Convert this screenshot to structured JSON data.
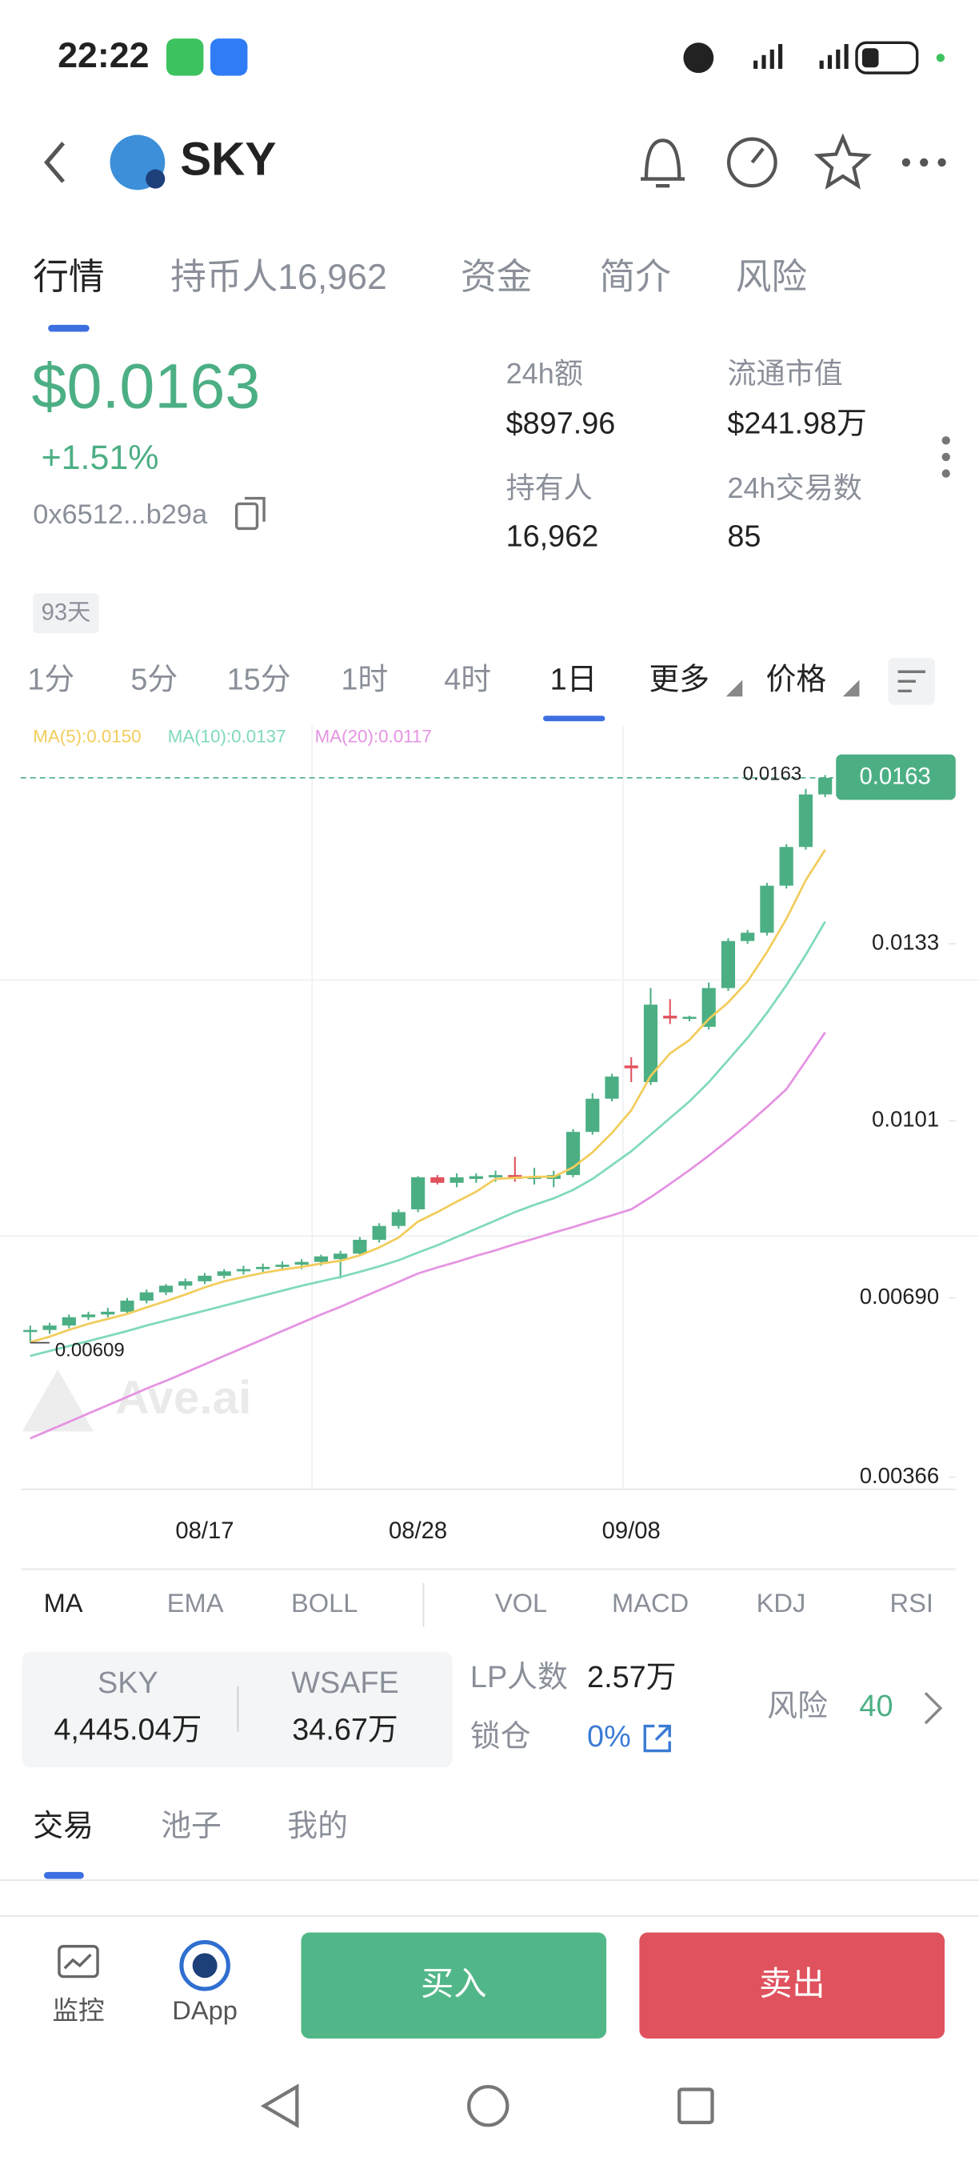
{
  "status_bar": {
    "time": "22:22"
  },
  "header": {
    "title": "SKY"
  },
  "tabs": [
    "行情",
    "持币人16,962",
    "资金",
    "简介",
    "风险"
  ],
  "price": {
    "value": "$0.0163",
    "change": "+1.51%",
    "address": "0x6512...b29a"
  },
  "stats": [
    {
      "label": "24h额",
      "value": "$897.96"
    },
    {
      "label": "流通市值",
      "value": "$241.98万"
    },
    {
      "label": "持有人",
      "value": "16,962"
    },
    {
      "label": "24h交易数",
      "value": "85"
    }
  ],
  "age": "93天",
  "intervals": [
    "1分",
    "5分",
    "15分",
    "1时",
    "4时",
    "1日",
    "更多",
    "价格"
  ],
  "chart_data": {
    "type": "candlestick",
    "categories": [
      null,
      null,
      null,
      null,
      null,
      null,
      null,
      null,
      null,
      "08/17",
      null,
      null,
      null,
      null,
      null,
      null,
      null,
      null,
      null,
      null,
      "08/28",
      null,
      null,
      null,
      null,
      null,
      null,
      null,
      null,
      null,
      null,
      "09/08",
      null,
      null,
      null,
      null,
      null,
      null,
      null,
      null,
      null,
      null
    ],
    "open": [
      0.0063,
      0.00632,
      0.0064,
      0.00655,
      0.0066,
      0.00665,
      0.00685,
      0.007,
      0.00712,
      0.0072,
      0.0073,
      0.00738,
      0.00742,
      0.00746,
      0.0075,
      0.00755,
      0.0076,
      0.0077,
      0.00795,
      0.0082,
      0.0085,
      0.00908,
      0.00898,
      0.00905,
      0.00908,
      0.00912,
      0.00905,
      0.00905,
      0.00912,
      0.0099,
      0.0105,
      0.0111,
      0.0108,
      0.012,
      0.01195,
      0.0118,
      0.0125,
      0.01335,
      0.0135,
      0.01435,
      0.01505,
      0.016
    ],
    "high": [
      0.0064,
      0.00645,
      0.0066,
      0.00665,
      0.00672,
      0.0069,
      0.00705,
      0.00715,
      0.00725,
      0.00735,
      0.00742,
      0.00748,
      0.00752,
      0.00756,
      0.0076,
      0.00768,
      0.00775,
      0.008,
      0.00825,
      0.0085,
      0.0091,
      0.00912,
      0.00915,
      0.00915,
      0.0092,
      0.00945,
      0.00925,
      0.0092,
      0.00995,
      0.0106,
      0.01095,
      0.01125,
      0.0125,
      0.0123,
      0.012,
      0.0126,
      0.0134,
      0.01355,
      0.0144,
      0.0151,
      0.0161,
      0.01635
    ],
    "low": [
      0.00609,
      0.00625,
      0.00635,
      0.0065,
      0.00655,
      0.0066,
      0.0068,
      0.00695,
      0.00705,
      0.00715,
      0.00725,
      0.00732,
      0.00736,
      0.0074,
      0.00742,
      0.00748,
      0.00725,
      0.00765,
      0.0079,
      0.00815,
      0.00845,
      0.00895,
      0.0089,
      0.00898,
      0.009,
      0.009,
      0.00895,
      0.0089,
      0.00908,
      0.00985,
      0.01045,
      0.0108,
      0.01075,
      0.01185,
      0.0119,
      0.01175,
      0.01245,
      0.0133,
      0.01345,
      0.0143,
      0.015,
      0.01595
    ],
    "close": [
      0.00632,
      0.0064,
      0.00655,
      0.0066,
      0.00665,
      0.00685,
      0.007,
      0.00712,
      0.0072,
      0.0073,
      0.00738,
      0.00742,
      0.00746,
      0.0075,
      0.00755,
      0.00765,
      0.0077,
      0.00795,
      0.0082,
      0.00845,
      0.00908,
      0.00898,
      0.00908,
      0.0091,
      0.00912,
      0.00905,
      0.0091,
      0.00912,
      0.0099,
      0.0105,
      0.0109,
      0.01105,
      0.0122,
      0.01195,
      0.01198,
      0.0125,
      0.01335,
      0.0135,
      0.01435,
      0.01505,
      0.016,
      0.0163
    ],
    "up_color": "#4caf84",
    "down_color": "#e0525e",
    "series": [
      {
        "name": "MA(5):0.0150",
        "color": "#f2cd5c",
        "values": [
          0.0061,
          0.0062,
          0.00632,
          0.00643,
          0.00652,
          0.00661,
          0.00673,
          0.00684,
          0.00696,
          0.00709,
          0.0072,
          0.00728,
          0.00735,
          0.00741,
          0.00746,
          0.00752,
          0.00757,
          0.00767,
          0.00781,
          0.00799,
          0.00828,
          0.00845,
          0.00864,
          0.00882,
          0.00905,
          0.00907,
          0.00909,
          0.00909,
          0.00926,
          0.00953,
          0.00988,
          0.01029,
          0.01091,
          0.01132,
          0.01156,
          0.01194,
          0.01224,
          0.01262,
          0.01315,
          0.01375,
          0.01445,
          0.015
        ]
      },
      {
        "name": "MA(10):0.0137",
        "color": "#7fd9bd",
        "values": [
          0.00585,
          0.00594,
          0.00603,
          0.00612,
          0.00621,
          0.0063,
          0.0064,
          0.00649,
          0.00658,
          0.00667,
          0.00676,
          0.00685,
          0.00694,
          0.00703,
          0.00712,
          0.0072,
          0.00728,
          0.00737,
          0.00747,
          0.00758,
          0.00772,
          0.00785,
          0.008,
          0.00815,
          0.0083,
          0.00845,
          0.00858,
          0.0087,
          0.00885,
          0.00905,
          0.0093,
          0.00955,
          0.00985,
          0.01015,
          0.01045,
          0.0108,
          0.0112,
          0.0116,
          0.01205,
          0.01255,
          0.0131,
          0.0137
        ]
      },
      {
        "name": "MA(20):0.0117",
        "color": "#e593e2",
        "values": [
          0.00436,
          0.00451,
          0.00466,
          0.00481,
          0.00496,
          0.00511,
          0.00526,
          0.0054,
          0.00555,
          0.0057,
          0.00585,
          0.006,
          0.00615,
          0.0063,
          0.00645,
          0.0066,
          0.00674,
          0.00689,
          0.00704,
          0.00719,
          0.00734,
          0.00745,
          0.00755,
          0.00766,
          0.00776,
          0.00787,
          0.00797,
          0.00808,
          0.00818,
          0.00829,
          0.00839,
          0.0085,
          0.00872,
          0.00896,
          0.00921,
          0.00947,
          0.00975,
          0.01004,
          0.01035,
          0.01067,
          0.01118,
          0.0117
        ]
      }
    ],
    "last_price": 0.0163,
    "low_label": 0.00609,
    "watermark": "Ave.ai",
    "ylim": [
      0.00344,
      0.0168
    ],
    "yticks": [
      0.00366,
      {
        "value": 0.0069,
        "label": "0.00690"
      },
      0.0101,
      0.0133
    ]
  },
  "indicators": [
    "MA",
    "EMA",
    "BOLL",
    "VOL",
    "MACD",
    "KDJ",
    "RSI"
  ],
  "pool": {
    "token_a": "SKY",
    "amount_a": "4,445.04万",
    "token_b": "WSAFE",
    "amount_b": "34.67万",
    "lp_label": "LP人数",
    "lp_value": "2.57万",
    "lock_label": "锁仓",
    "lock_value": "0%",
    "risk_label": "风险",
    "risk_value": "40"
  },
  "bottom_tabs": [
    "交易",
    "池子",
    "我的"
  ],
  "nav": {
    "monitor": "监控",
    "dapp": "DApp",
    "buy": "买入",
    "sell": "卖出"
  }
}
